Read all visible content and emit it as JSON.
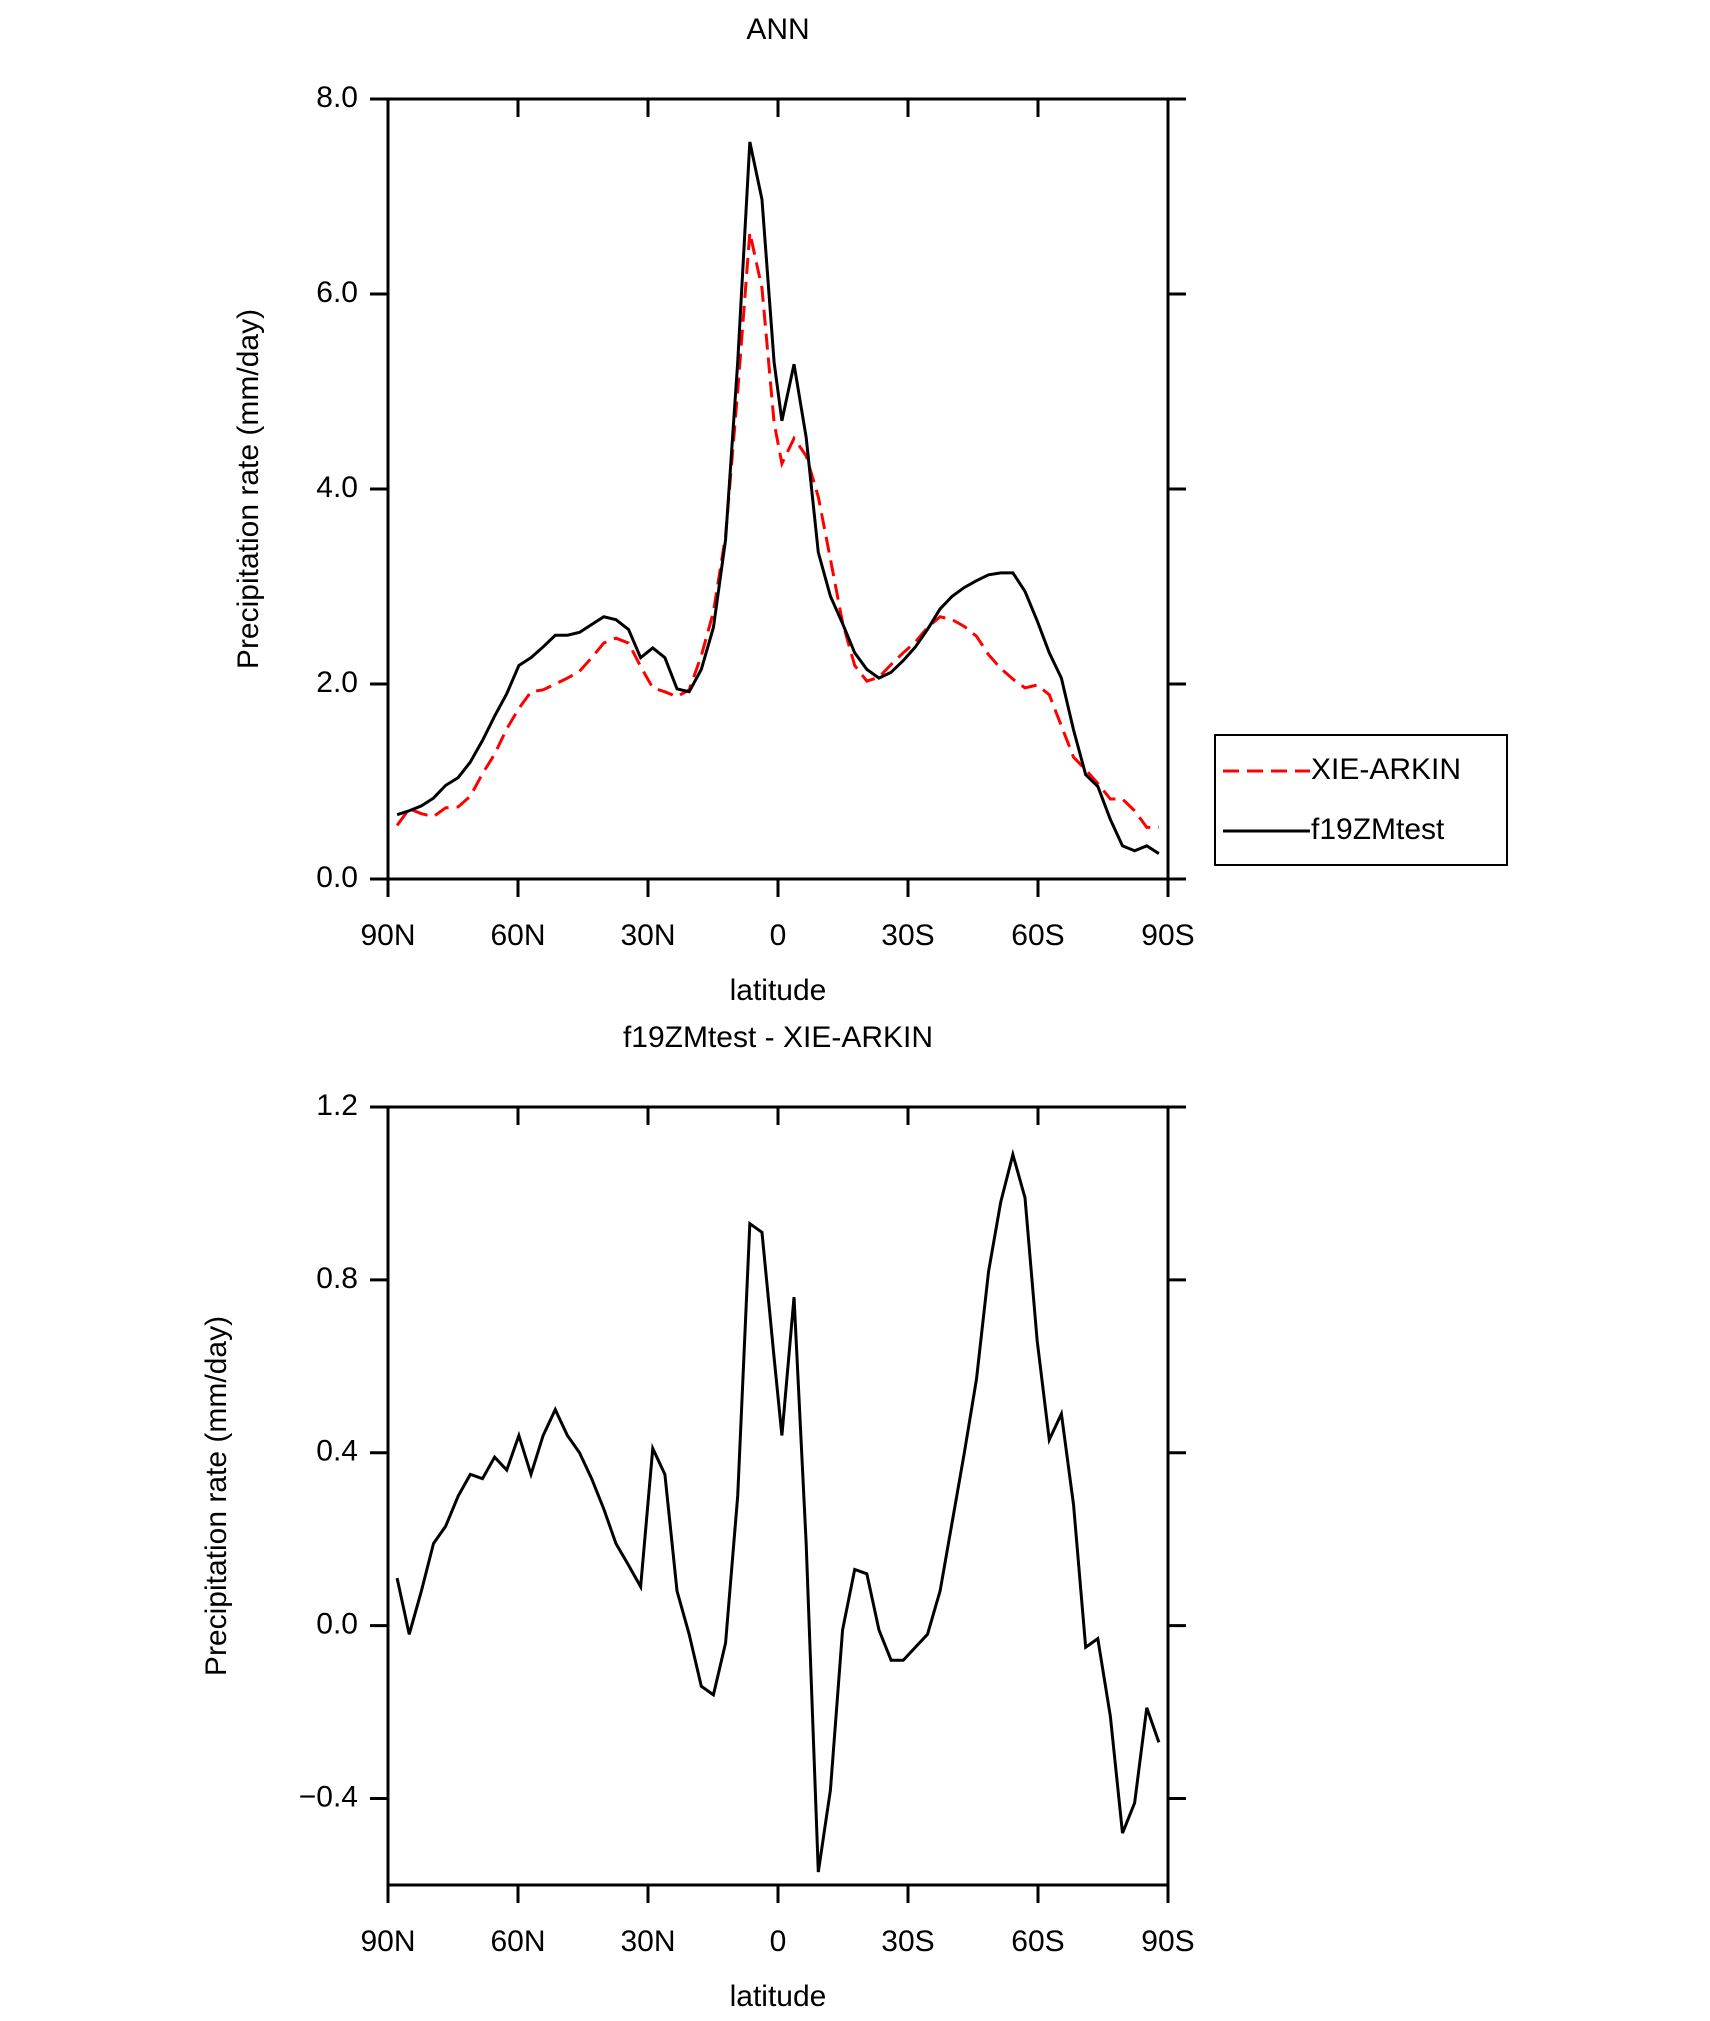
{
  "chart_data": [
    {
      "type": "line",
      "title": "ANN",
      "xlabel": "latitude",
      "ylabel": "Precipitation rate (mm/day)",
      "x": [
        87.9,
        85.1,
        82.3,
        79.5,
        76.7,
        73.8,
        71.0,
        68.2,
        65.4,
        62.6,
        59.8,
        57.0,
        54.2,
        51.4,
        48.6,
        45.8,
        43.0,
        40.2,
        37.4,
        34.5,
        31.7,
        28.9,
        26.1,
        23.3,
        20.5,
        17.7,
        14.9,
        12.1,
        9.3,
        6.5,
        3.7,
        0.9,
        -0.9,
        -3.7,
        -6.5,
        -9.3,
        -12.1,
        -14.9,
        -17.7,
        -20.5,
        -23.3,
        -26.1,
        -28.9,
        -31.7,
        -34.5,
        -37.4,
        -40.2,
        -43.0,
        -45.8,
        -48.6,
        -51.4,
        -54.2,
        -57.0,
        -59.8,
        -62.6,
        -65.4,
        -68.2,
        -71.0,
        -73.8,
        -76.7,
        -79.5,
        -82.3,
        -85.1,
        -87.9
      ],
      "series": [
        {
          "name": "XIE-ARKIN",
          "color": "#ff0000",
          "dashed": true,
          "values": [
            0.55,
            0.72,
            0.67,
            0.64,
            0.73,
            0.74,
            0.85,
            1.08,
            1.28,
            1.54,
            1.75,
            1.92,
            1.94,
            2.0,
            2.06,
            2.13,
            2.27,
            2.42,
            2.47,
            2.42,
            2.18,
            1.96,
            1.92,
            1.87,
            1.94,
            2.29,
            2.74,
            3.52,
            5.0,
            6.63,
            6.06,
            4.68,
            4.26,
            4.52,
            4.34,
            3.92,
            3.28,
            2.63,
            2.19,
            2.03,
            2.07,
            2.2,
            2.32,
            2.43,
            2.58,
            2.69,
            2.66,
            2.59,
            2.49,
            2.3,
            2.16,
            2.05,
            1.96,
            1.99,
            1.89,
            1.57,
            1.25,
            1.12,
            0.98,
            0.82,
            0.82,
            0.7,
            0.53,
            0.53
          ]
        },
        {
          "name": "f19ZMtest",
          "color": "#000000",
          "dashed": false,
          "values": [
            0.66,
            0.7,
            0.75,
            0.83,
            0.96,
            1.04,
            1.2,
            1.42,
            1.67,
            1.9,
            2.19,
            2.27,
            2.38,
            2.5,
            2.5,
            2.53,
            2.61,
            2.69,
            2.66,
            2.56,
            2.27,
            2.37,
            2.27,
            1.95,
            1.92,
            2.15,
            2.58,
            3.48,
            5.3,
            7.56,
            6.97,
            5.3,
            4.7,
            5.28,
            4.53,
            3.35,
            2.9,
            2.62,
            2.32,
            2.15,
            2.06,
            2.12,
            2.24,
            2.38,
            2.56,
            2.77,
            2.9,
            2.99,
            3.06,
            3.12,
            3.14,
            3.14,
            2.95,
            2.65,
            2.32,
            2.06,
            1.53,
            1.07,
            0.95,
            0.61,
            0.34,
            0.29,
            0.34,
            0.26
          ]
        }
      ],
      "xlim": [
        90,
        -90
      ],
      "xticks": [
        {
          "value": 90,
          "label": "90N"
        },
        {
          "value": 60,
          "label": "60N"
        },
        {
          "value": 30,
          "label": "30N"
        },
        0,
        {
          "value": -30,
          "label": "30S"
        },
        {
          "value": -60,
          "label": "60S"
        },
        {
          "value": -90,
          "label": "90S"
        }
      ],
      "ylim": [
        0,
        8
      ],
      "yticks": [
        {
          "value": 0,
          "label": "0.0"
        },
        {
          "value": 2,
          "label": "2.0"
        },
        {
          "value": 4,
          "label": "4.0"
        },
        {
          "value": 6,
          "label": "6.0"
        },
        {
          "value": 8,
          "label": "8.0"
        }
      ],
      "legend": "outside-right"
    },
    {
      "type": "line",
      "title": "f19ZMtest - XIE-ARKIN",
      "xlabel": "latitude",
      "ylabel": "Precipitation rate (mm/day)",
      "x": [
        87.9,
        85.1,
        82.3,
        79.5,
        76.7,
        73.8,
        71.0,
        68.2,
        65.4,
        62.6,
        59.8,
        57.0,
        54.2,
        51.4,
        48.6,
        45.8,
        43.0,
        40.2,
        37.4,
        34.5,
        31.7,
        28.9,
        26.1,
        23.3,
        20.5,
        17.7,
        14.9,
        12.1,
        9.3,
        6.5,
        3.7,
        0.9,
        -0.9,
        -3.7,
        -6.5,
        -9.3,
        -12.1,
        -14.9,
        -17.7,
        -20.5,
        -23.3,
        -26.1,
        -28.9,
        -31.7,
        -34.5,
        -37.4,
        -40.2,
        -43.0,
        -45.8,
        -48.6,
        -51.4,
        -54.2,
        -57.0,
        -59.8,
        -62.6,
        -65.4,
        -68.2,
        -71.0,
        -73.8,
        -76.7,
        -79.5,
        -82.3,
        -85.1,
        -87.9
      ],
      "values": [
        0.11,
        -0.02,
        0.08,
        0.19,
        0.23,
        0.3,
        0.35,
        0.34,
        0.39,
        0.36,
        0.44,
        0.35,
        0.44,
        0.5,
        0.44,
        0.4,
        0.34,
        0.27,
        0.19,
        0.14,
        0.09,
        0.41,
        0.35,
        0.08,
        -0.02,
        -0.14,
        -0.16,
        -0.04,
        0.3,
        0.93,
        0.91,
        0.62,
        0.44,
        0.76,
        0.19,
        -0.57,
        -0.38,
        -0.01,
        0.13,
        0.12,
        -0.01,
        -0.08,
        -0.08,
        -0.05,
        -0.02,
        0.08,
        0.24,
        0.4,
        0.57,
        0.82,
        0.98,
        1.09,
        0.99,
        0.66,
        0.43,
        0.49,
        0.28,
        -0.05,
        -0.03,
        -0.21,
        -0.48,
        -0.41,
        -0.19,
        -0.27
      ],
      "color": "#000000",
      "xlim": [
        90,
        -90
      ],
      "xticks": [
        {
          "value": 90,
          "label": "90N"
        },
        {
          "value": 60,
          "label": "60N"
        },
        {
          "value": 30,
          "label": "30N"
        },
        0,
        {
          "value": -30,
          "label": "30S"
        },
        {
          "value": -60,
          "label": "60S"
        },
        {
          "value": -90,
          "label": "90S"
        }
      ],
      "ylim": [
        -0.6,
        1.2
      ],
      "yticks": [
        {
          "value": -0.4,
          "label": "−0.4"
        },
        {
          "value": 0,
          "label": "0.0"
        },
        0.4,
        0.8,
        1.2
      ]
    }
  ]
}
